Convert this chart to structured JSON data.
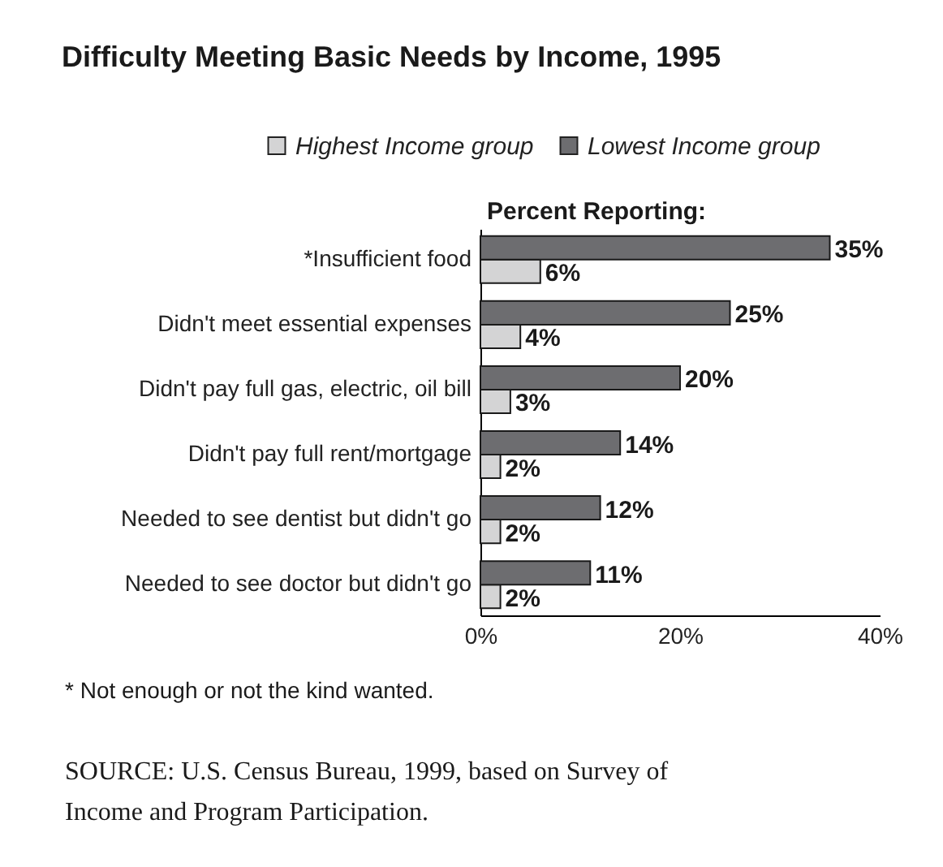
{
  "chart_data": {
    "type": "bar",
    "orientation": "horizontal",
    "title": "Difficulty Meeting Basic Needs by Income, 1995",
    "xlabel": "Percent Reporting:",
    "categories": [
      "*Insufficient food",
      "Didn't meet essential expenses",
      "Didn't pay full gas, electric, oil bill",
      "Didn't pay full rent/mortgage",
      "Needed to see dentist but didn't go",
      "Needed to see doctor but didn't go"
    ],
    "series": [
      {
        "name": "Highest Income group",
        "color": "#d4d4d5",
        "values": [
          6,
          4,
          3,
          2,
          2,
          2
        ],
        "value_labels": [
          "6%",
          "4%",
          "3%",
          "2%",
          "2%",
          "2%"
        ]
      },
      {
        "name": "Lowest Income group",
        "color": "#6d6d70",
        "values": [
          35,
          25,
          20,
          14,
          12,
          11
        ],
        "value_labels": [
          "35%",
          "25%",
          "20%",
          "14%",
          "12%",
          "11%"
        ]
      }
    ],
    "xlim": [
      0,
      40
    ],
    "xticks": [
      {
        "value": 0,
        "label": "0%"
      },
      {
        "value": 20,
        "label": "20%"
      },
      {
        "value": 40,
        "label": "40%"
      }
    ],
    "legend": "top",
    "grid": false,
    "annotations": [
      "* Not enough or not the kind wanted.",
      "SOURCE: U.S. Census Bureau, 1999, based on Survey of Income and Program Participation."
    ]
  }
}
